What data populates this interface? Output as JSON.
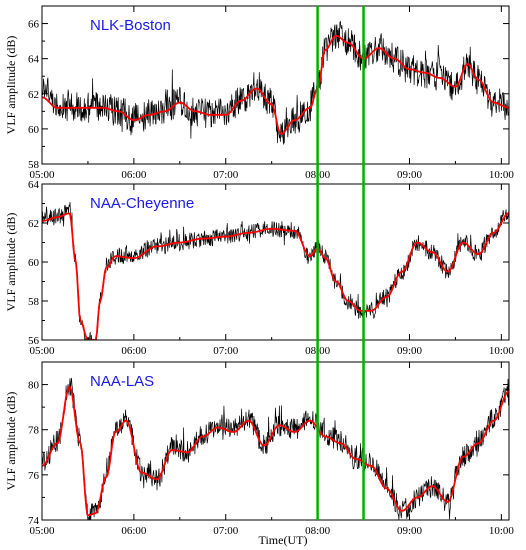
{
  "chart_data": [
    {
      "type": "line",
      "title": "NLK-Boston",
      "ylabel": "VLF amplitude (dB)",
      "ylim": [
        58,
        67
      ],
      "yticks": [
        58,
        60,
        62,
        64,
        66
      ],
      "xlim": [
        "05:00",
        "10:05"
      ],
      "xticks": [
        "05:00",
        "06:00",
        "07:00",
        "08:00",
        "09:00",
        "10:00"
      ],
      "grid": false,
      "series": [
        {
          "color": "#000000",
          "style": "noisy-raw",
          "noise_db": 1.6,
          "x": [
            "05:00",
            "05:10",
            "05:20",
            "05:30",
            "05:40",
            "05:50",
            "06:00",
            "06:10",
            "06:20",
            "06:30",
            "06:40",
            "06:50",
            "07:00",
            "07:10",
            "07:20",
            "07:30",
            "07:36",
            "07:45",
            "07:55",
            "08:00",
            "08:05",
            "08:12",
            "08:20",
            "08:30",
            "08:40",
            "08:50",
            "09:00",
            "09:10",
            "09:20",
            "09:30",
            "09:38",
            "09:45",
            "09:55",
            "10:05"
          ],
          "values": [
            62.3,
            61.6,
            61.2,
            61.2,
            61.2,
            61.0,
            60.6,
            60.8,
            61.0,
            61.6,
            61.0,
            60.8,
            60.9,
            61.6,
            62.4,
            61.5,
            59.8,
            60.5,
            61.3,
            62.5,
            64.5,
            65.4,
            65.0,
            64.0,
            64.6,
            64.0,
            63.4,
            63.2,
            62.9,
            62.4,
            63.7,
            62.8,
            61.5,
            61.3
          ]
        },
        {
          "color": "#ff0000",
          "style": "smoothed",
          "x": [
            "05:00",
            "05:10",
            "05:20",
            "05:30",
            "05:40",
            "05:50",
            "06:00",
            "06:10",
            "06:20",
            "06:30",
            "06:40",
            "06:50",
            "07:00",
            "07:10",
            "07:20",
            "07:30",
            "07:36",
            "07:45",
            "07:55",
            "08:00",
            "08:05",
            "08:12",
            "08:20",
            "08:30",
            "08:40",
            "08:50",
            "09:00",
            "09:10",
            "09:20",
            "09:30",
            "09:38",
            "09:45",
            "09:55",
            "10:05"
          ],
          "values": [
            61.8,
            61.2,
            61.2,
            61.2,
            61.2,
            61.0,
            60.5,
            60.8,
            61.0,
            61.5,
            61.0,
            60.8,
            60.8,
            61.6,
            62.3,
            61.4,
            59.7,
            60.5,
            61.2,
            62.3,
            64.5,
            65.3,
            64.9,
            64.0,
            64.6,
            64.0,
            63.4,
            63.2,
            62.9,
            62.4,
            63.7,
            62.8,
            61.5,
            61.2
          ]
        }
      ],
      "vlines": [
        "08:00",
        "08:30"
      ],
      "vline_color": "#00b000"
    },
    {
      "type": "line",
      "title": "NAA-Cheyenne",
      "ylabel": "VLF amplitude (dB)",
      "ylim": [
        56,
        64
      ],
      "yticks": [
        56,
        58,
        60,
        62,
        64
      ],
      "xlim": [
        "05:00",
        "10:05"
      ],
      "xticks": [
        "05:00",
        "06:00",
        "07:00",
        "08:00",
        "09:00",
        "10:00"
      ],
      "grid": false,
      "series": [
        {
          "color": "#000000",
          "style": "noisy-raw",
          "noise_db": 0.8,
          "x": [
            "05:00",
            "05:10",
            "05:18",
            "05:22",
            "05:25",
            "05:30",
            "05:35",
            "05:38",
            "05:42",
            "05:48",
            "06:00",
            "06:15",
            "06:30",
            "06:45",
            "07:00",
            "07:15",
            "07:30",
            "07:45",
            "07:55",
            "08:00",
            "08:05",
            "08:12",
            "08:20",
            "08:28",
            "08:35",
            "08:45",
            "08:55",
            "09:05",
            "09:15",
            "09:25",
            "09:35",
            "09:45",
            "09:55",
            "10:05"
          ],
          "values": [
            62.2,
            62.3,
            62.6,
            60.0,
            57.0,
            56.0,
            56.0,
            58.0,
            59.8,
            60.3,
            60.3,
            60.8,
            61.0,
            61.2,
            61.3,
            61.5,
            61.7,
            61.6,
            60.3,
            60.8,
            60.3,
            59.0,
            58.0,
            57.5,
            57.5,
            58.2,
            59.5,
            61.0,
            60.5,
            59.5,
            61.0,
            60.4,
            61.5,
            62.6
          ]
        },
        {
          "color": "#ff0000",
          "style": "smoothed",
          "x": [
            "05:00",
            "05:10",
            "05:18",
            "05:22",
            "05:25",
            "05:30",
            "05:35",
            "05:38",
            "05:42",
            "05:48",
            "06:00",
            "06:15",
            "06:30",
            "06:45",
            "07:00",
            "07:15",
            "07:30",
            "07:45",
            "07:55",
            "08:00",
            "08:05",
            "08:12",
            "08:20",
            "08:28",
            "08:35",
            "08:45",
            "08:55",
            "09:05",
            "09:15",
            "09:25",
            "09:35",
            "09:45",
            "09:55",
            "10:05"
          ],
          "values": [
            62.1,
            62.3,
            62.5,
            60.0,
            57.0,
            56.0,
            56.0,
            58.0,
            59.7,
            60.3,
            60.2,
            60.8,
            61.0,
            61.2,
            61.3,
            61.5,
            61.7,
            61.6,
            60.3,
            60.7,
            60.2,
            59.0,
            58.0,
            57.5,
            57.5,
            58.2,
            59.5,
            61.0,
            60.5,
            59.5,
            61.0,
            60.4,
            61.5,
            62.5
          ]
        }
      ],
      "vlines": [
        "08:00",
        "08:30"
      ],
      "vline_color": "#00b000"
    },
    {
      "type": "line",
      "title": "NAA-LAS",
      "ylabel": "VLF amplitude (dB)",
      "xlabel": "Time(UT)",
      "ylim": [
        74,
        81
      ],
      "yticks": [
        74,
        76,
        78,
        80
      ],
      "xlim": [
        "05:00",
        "10:05"
      ],
      "xticks": [
        "05:00",
        "06:00",
        "07:00",
        "08:00",
        "09:00",
        "10:00"
      ],
      "grid": false,
      "series": [
        {
          "color": "#000000",
          "style": "noisy-raw",
          "noise_db": 0.9,
          "x": [
            "05:00",
            "05:10",
            "05:18",
            "05:25",
            "05:30",
            "05:35",
            "05:42",
            "05:48",
            "05:55",
            "06:05",
            "06:15",
            "06:25",
            "06:35",
            "06:45",
            "06:55",
            "07:05",
            "07:15",
            "07:25",
            "07:35",
            "07:45",
            "07:55",
            "08:05",
            "08:15",
            "08:25",
            "08:35",
            "08:45",
            "08:55",
            "09:05",
            "09:15",
            "09:25",
            "09:35",
            "09:45",
            "09:55",
            "10:05"
          ],
          "values": [
            76.5,
            77.5,
            80.0,
            77.5,
            74.2,
            74.3,
            76.0,
            78.0,
            78.5,
            76.2,
            75.8,
            77.2,
            77.0,
            77.8,
            78.2,
            78.0,
            78.5,
            77.3,
            78.3,
            78.0,
            78.5,
            77.8,
            77.5,
            76.7,
            76.5,
            75.5,
            74.4,
            75.0,
            75.5,
            74.8,
            76.8,
            77.5,
            78.5,
            79.8
          ]
        },
        {
          "color": "#ff0000",
          "style": "smoothed",
          "x": [
            "05:00",
            "05:10",
            "05:18",
            "05:25",
            "05:30",
            "05:35",
            "05:42",
            "05:48",
            "05:55",
            "06:05",
            "06:15",
            "06:25",
            "06:35",
            "06:45",
            "06:55",
            "07:05",
            "07:15",
            "07:25",
            "07:35",
            "07:45",
            "07:55",
            "08:05",
            "08:15",
            "08:25",
            "08:35",
            "08:45",
            "08:55",
            "09:05",
            "09:15",
            "09:25",
            "09:35",
            "09:45",
            "09:55",
            "10:05"
          ],
          "values": [
            76.4,
            77.4,
            79.9,
            77.4,
            74.2,
            74.3,
            75.9,
            77.9,
            78.4,
            76.1,
            75.8,
            77.1,
            77.0,
            77.7,
            78.1,
            77.9,
            78.4,
            77.3,
            78.2,
            77.9,
            78.4,
            77.7,
            77.4,
            76.7,
            76.4,
            75.4,
            74.4,
            75.0,
            75.5,
            74.8,
            76.8,
            77.4,
            78.4,
            79.7
          ]
        }
      ],
      "vlines": [
        "08:00",
        "08:30"
      ],
      "vline_color": "#00b000"
    }
  ]
}
